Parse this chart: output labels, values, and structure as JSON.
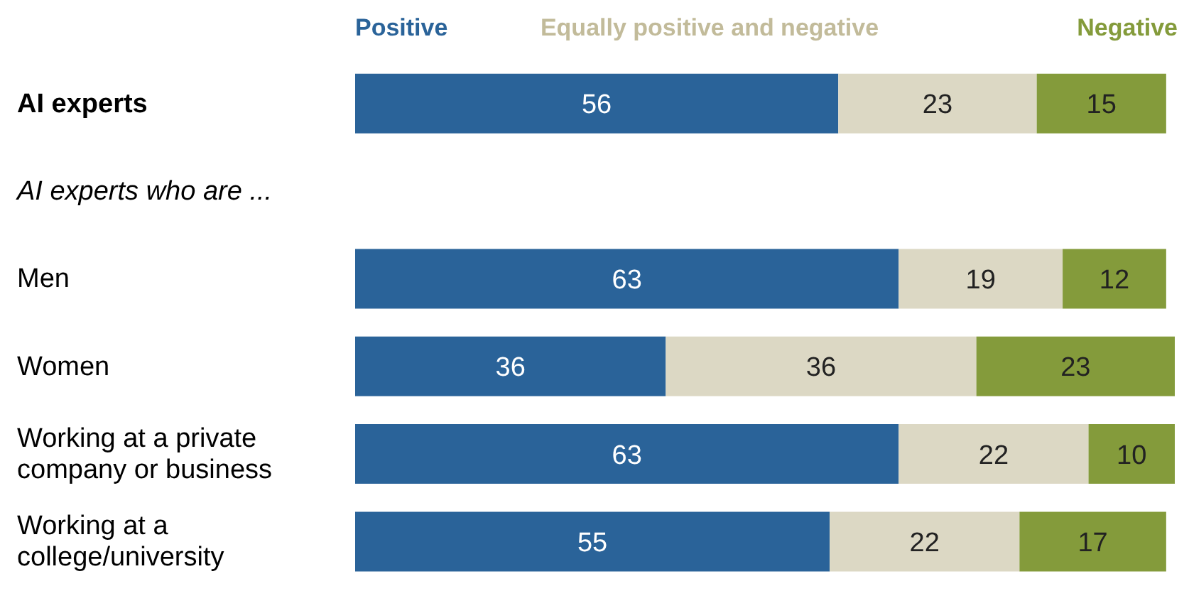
{
  "chart_data": {
    "type": "bar",
    "orientation": "horizontal",
    "stacked": true,
    "data_labels": true,
    "legend": "top",
    "grid": false,
    "categories": [
      "AI experts",
      "AI experts who are ...",
      "Men",
      "Women",
      "Working at a private company or business",
      "Working at a college/university"
    ],
    "series": [
      {
        "name": "Positive",
        "color": "#2a6399",
        "values": [
          56,
          null,
          63,
          36,
          63,
          55
        ]
      },
      {
        "name": "Equally positive and negative",
        "color": "#dcd8c4",
        "values": [
          23,
          null,
          19,
          36,
          22,
          22
        ]
      },
      {
        "name": "Negative",
        "color": "#849b3b",
        "values": [
          15,
          null,
          12,
          23,
          10,
          17
        ]
      }
    ]
  }
}
